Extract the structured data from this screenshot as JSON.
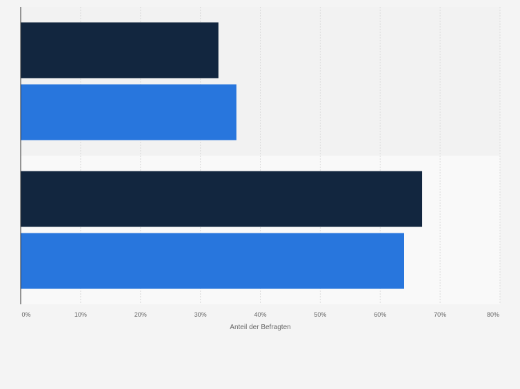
{
  "chart_data": {
    "type": "bar",
    "orientation": "horizontal",
    "categories": [
      "",
      ""
    ],
    "series": [
      {
        "values": [
          33,
          67
        ],
        "color": "#12263f"
      },
      {
        "values": [
          36,
          64
        ],
        "color": "#2876dd"
      }
    ],
    "xlabel": "Anteil der Befragten",
    "xlim": [
      0,
      80
    ],
    "x_ticks": [
      0,
      10,
      20,
      30,
      40,
      50,
      60,
      70,
      80
    ],
    "x_tick_labels": [
      "0%",
      "10%",
      "20%",
      "30%",
      "40%",
      "50%",
      "60%",
      "70%",
      "80%"
    ],
    "grid": true,
    "legend": "none"
  }
}
